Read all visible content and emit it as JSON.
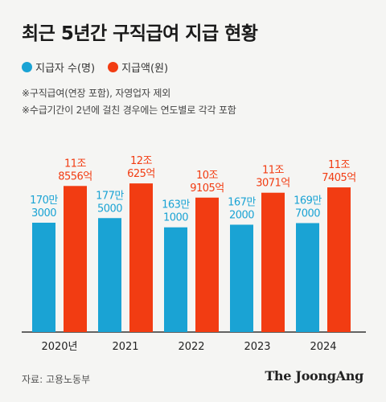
{
  "title": "최근 5년간 구직급여 지급 현황",
  "legend": [
    {
      "label": "지급자 수(명)",
      "color": "#1aa3d4"
    },
    {
      "label": "지급액(원)",
      "color": "#f23c12"
    }
  ],
  "notes": [
    "※구직급여(연장 포함), 자영업자 제외",
    "※수급기간이 2년에 걸친 경우에는 연도별로 각각 포함"
  ],
  "source": "자료: 고용노동부",
  "brand": "The JoongAng",
  "chart_data": {
    "type": "bar",
    "categories": [
      "2020년",
      "2021",
      "2022",
      "2023",
      "2024"
    ],
    "ylim": [
      0,
      130000
    ],
    "series": [
      {
        "name": "지급자 수(명)",
        "color": "#1aa3d4",
        "values": [
          1703000,
          1775000,
          1631000,
          1672000,
          1697000
        ],
        "labels": [
          [
            "170만",
            "3000"
          ],
          [
            "177만",
            "5000"
          ],
          [
            "163만",
            "1000"
          ],
          [
            "167만",
            "2000"
          ],
          [
            "169만",
            "7000"
          ]
        ]
      },
      {
        "name": "지급액(원)",
        "color": "#f23c12",
        "values": [
          118556,
          120625,
          109105,
          113071,
          117405
        ],
        "labels": [
          [
            "11조",
            "8556억"
          ],
          [
            "12조",
            "625억"
          ],
          [
            "10조",
            "9105억"
          ],
          [
            "11조",
            "3071억"
          ],
          [
            "11조",
            "7405억"
          ]
        ]
      }
    ]
  }
}
